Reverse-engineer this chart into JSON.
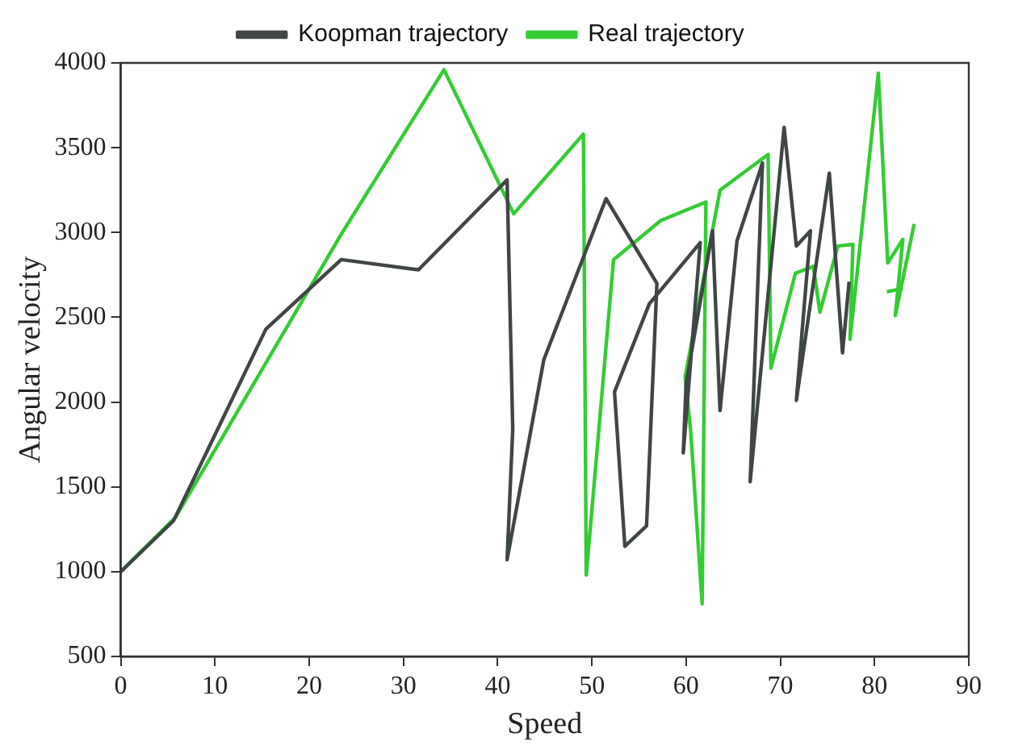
{
  "chart_data": {
    "type": "line",
    "xlabel": "Speed",
    "ylabel": "Angular velocity",
    "xlim": [
      0,
      90
    ],
    "xticks": [
      0,
      10,
      20,
      30,
      40,
      50,
      60,
      70,
      80,
      90
    ],
    "ylim": [
      500,
      4000
    ],
    "yticks": [
      500,
      1000,
      1500,
      2000,
      2500,
      3000,
      3500,
      4000
    ],
    "grid": false,
    "legend": "top",
    "marker": "none",
    "line_style": "solid",
    "series": [
      {
        "name": "Koopman trajectory",
        "color": "#404545",
        "x": [
          0,
          5.6,
          15.4,
          23.4,
          31.6,
          41.0,
          41.6,
          41.0,
          44.9,
          51.5,
          56.9,
          55.8,
          53.5,
          52.4,
          56.1,
          61.5,
          59.7,
          60.0,
          62.8,
          63.6,
          65.4,
          68.1,
          66.8,
          70.4,
          71.7,
          73.2,
          71.7,
          75.2,
          76.6,
          77.3
        ],
        "values": [
          1000,
          1300,
          2430,
          2840,
          2780,
          3310,
          1840,
          1070,
          2250,
          3200,
          2700,
          1270,
          1150,
          2060,
          2580,
          2940,
          1700,
          2110,
          3010,
          1950,
          2950,
          3410,
          1530,
          3620,
          2920,
          3010,
          2010,
          3350,
          2290,
          2710
        ]
      },
      {
        "name": "Real trajectory",
        "color": "#33cc33",
        "x": [
          0,
          5.8,
          23.4,
          34.3,
          41.7,
          49.1,
          49.4,
          52.3,
          57.3,
          62.1,
          61.7,
          60.5,
          59.9,
          63.6,
          68.7,
          69.0,
          71.6,
          73.5,
          74.2,
          76.1,
          77.7,
          77.4,
          80.4,
          81.4,
          83.0,
          82.2,
          84.2,
          null,
          81.3,
          83.0
        ],
        "values": [
          1000,
          1320,
          2990,
          3960,
          3110,
          3580,
          980,
          2840,
          3070,
          3180,
          810,
          1820,
          2150,
          3250,
          3460,
          2200,
          2760,
          2800,
          2530,
          2920,
          2930,
          2370,
          3940,
          2820,
          2960,
          2510,
          3050,
          null,
          2650,
          2670
        ]
      }
    ]
  }
}
